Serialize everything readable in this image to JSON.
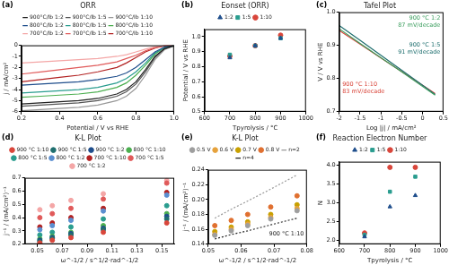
{
  "chart_data": [
    {
      "type": "line",
      "label": "(a)",
      "title": "ORR",
      "x_label": "Potential / V vs RHE",
      "y_label": "j / mA/cm²",
      "x": [
        0.2,
        0.3,
        0.4,
        0.5,
        0.6,
        0.7,
        0.75,
        0.8,
        0.85,
        0.9,
        0.95,
        1.0
      ],
      "xlim": [
        0.2,
        1.0
      ],
      "xticks": [
        0.2,
        0.4,
        0.6,
        0.8,
        {
          "value": 1,
          "label": "1.0"
        }
      ],
      "ylim": [
        -6,
        0
      ],
      "yticks": [
        -6,
        -5,
        -4,
        -3,
        -2,
        -1,
        0
      ],
      "grid": false,
      "legend": "top",
      "marker": "none",
      "line_style": "solid",
      "series": [
        {
          "name": "900°C/lb 1:2",
          "color": "#222222",
          "values": [
            -5.3,
            -5.2,
            -5.1,
            -5.0,
            -4.8,
            -4.4,
            -4.0,
            -3.3,
            -2.2,
            -1.0,
            -0.3,
            -0.05
          ]
        },
        {
          "name": "900°C/lb 1:5",
          "color": "#555555",
          "values": [
            -5.5,
            -5.4,
            -5.3,
            -5.2,
            -5.0,
            -4.6,
            -4.2,
            -3.5,
            -2.4,
            -1.1,
            -0.3,
            -0.05
          ]
        },
        {
          "name": "900°C/lb 1:10",
          "color": "#999999",
          "values": [
            -5.9,
            -5.8,
            -5.7,
            -5.6,
            -5.4,
            -5.0,
            -4.6,
            -3.9,
            -2.7,
            -1.3,
            -0.4,
            -0.05
          ]
        },
        {
          "name": "800°C/lb 1:2",
          "color": "#1f4e8c",
          "values": [
            -3.6,
            -3.5,
            -3.4,
            -3.3,
            -3.1,
            -2.8,
            -2.5,
            -2.0,
            -1.3,
            -0.6,
            -0.15,
            -0.02
          ]
        },
        {
          "name": "800°C/lb 1:5",
          "color": "#2a9d8f",
          "values": [
            -4.3,
            -4.2,
            -4.1,
            -4.0,
            -3.8,
            -3.4,
            -3.0,
            -2.4,
            -1.6,
            -0.7,
            -0.2,
            -0.02
          ]
        },
        {
          "name": "800°C/lb 1:10",
          "color": "#4caf50",
          "values": [
            -4.7,
            -4.6,
            -4.5,
            -4.4,
            -4.2,
            -3.8,
            -3.4,
            -2.7,
            -1.8,
            -0.8,
            -0.2,
            -0.02
          ]
        },
        {
          "name": "700°C/lb 1:2",
          "color": "#f4a6a6",
          "values": [
            -1.6,
            -1.5,
            -1.4,
            -1.3,
            -1.2,
            -1.0,
            -0.85,
            -0.6,
            -0.35,
            -0.12,
            -0.03,
            0
          ]
        },
        {
          "name": "700°C/lb 1:5",
          "color": "#e05a5a",
          "values": [
            -2.6,
            -2.4,
            -2.2,
            -2.0,
            -1.8,
            -1.5,
            -1.2,
            -0.9,
            -0.5,
            -0.2,
            -0.05,
            0
          ]
        },
        {
          "name": "700°C/lb 1:10",
          "color": "#b22222",
          "values": [
            -3.3,
            -3.1,
            -2.9,
            -2.7,
            -2.4,
            -2.0,
            -1.6,
            -1.1,
            -0.6,
            -0.25,
            -0.05,
            0
          ]
        }
      ]
    },
    {
      "type": "scatter",
      "label": "(b)",
      "title": "Eonset (ORR)",
      "x_label": "Tpyrolysis / °C",
      "y_label": "Potential / V vs RHE",
      "x": [
        700,
        800,
        900
      ],
      "xlim": [
        600,
        1000
      ],
      "xticks": [
        600,
        700,
        800,
        900,
        1000
      ],
      "ylim": [
        0.5,
        1.05
      ],
      "yticks": [
        0.5,
        0.6,
        0.7,
        0.8,
        0.9,
        {
          "value": 1,
          "label": "1.0"
        }
      ],
      "grid": false,
      "legend": "top",
      "series": [
        {
          "name": "1:2",
          "color": "#1f4e8c",
          "marker": "triangle",
          "values": [
            0.86,
            0.94,
            0.99
          ]
        },
        {
          "name": "1:5",
          "color": "#2a9d8f",
          "marker": "square",
          "values": [
            0.88,
            0.94,
            0.99
          ]
        },
        {
          "name": "1:10",
          "color": "#d9463b",
          "marker": "circle",
          "values": [
            0.87,
            0.94,
            1.01
          ]
        }
      ]
    },
    {
      "type": "line",
      "label": "(c)",
      "title": "Tafel Plot",
      "x_label": "Log |j| / mA/cm²",
      "y_label": "V / V vs RHE",
      "x": [
        -2,
        -1.5,
        -1,
        -0.5,
        0,
        0.3
      ],
      "xlim": [
        -2,
        0.5
      ],
      "xticks": [
        -2,
        -1.5,
        -1,
        -0.5,
        0,
        0.5
      ],
      "ylim": [
        0.7,
        1.0
      ],
      "yticks": [
        0.7,
        0.8,
        0.9,
        {
          "value": 1,
          "label": "1.0"
        }
      ],
      "grid": false,
      "marker": "none",
      "line_style": "solid",
      "series": [
        {
          "color": "#3a9d5d",
          "values": [
            0.95,
            0.906,
            0.863,
            0.82,
            0.776,
            0.75
          ]
        },
        {
          "color": "#1f6f6f",
          "values": [
            0.96,
            0.915,
            0.87,
            0.825,
            0.78,
            0.752
          ]
        },
        {
          "color": "#d9463b",
          "values": [
            0.945,
            0.904,
            0.862,
            0.821,
            0.78,
            0.755
          ]
        }
      ],
      "annotations": [
        {
          "lines": [
            "900 °C 1:2",
            "87 mV/decade"
          ],
          "color": "#3a9d5d"
        },
        {
          "lines": [
            "900 °C 1:5",
            "91 mV/decade"
          ],
          "color": "#1f6f6f"
        },
        {
          "lines": [
            "900 °C 1:10",
            "83 mV/decade"
          ],
          "color": "#d9463b"
        }
      ]
    },
    {
      "type": "scatter",
      "label": "(d)",
      "title": "K-L Plot",
      "x_label": "ω^-1/2 / s^1/2·rad^-1/2",
      "y_label": "j⁻¹ / (mA/cm²)⁻¹",
      "x": [
        0.052,
        0.062,
        0.077,
        0.103,
        0.154
      ],
      "xlim": [
        0.04,
        0.16
      ],
      "xticks": [
        0.05,
        0.07,
        0.09,
        0.11,
        0.13,
        0.15
      ],
      "ylim": [
        0.2,
        0.7
      ],
      "yticks": [
        0.2,
        0.3,
        0.4,
        0.5,
        0.6,
        0.7
      ],
      "grid": false,
      "legend": "top",
      "marker": "circle",
      "series": [
        {
          "name": "900 °C 1:10",
          "color": "#d9463b",
          "values": [
            0.21,
            0.23,
            0.25,
            0.29,
            0.36
          ]
        },
        {
          "name": "900 °C 1:5",
          "color": "#1f6f6f",
          "values": [
            0.22,
            0.24,
            0.27,
            0.31,
            0.39
          ]
        },
        {
          "name": "900 °C 1:2",
          "color": "#1f4e8c",
          "values": [
            0.23,
            0.25,
            0.28,
            0.32,
            0.41
          ]
        },
        {
          "name": "800 °C 1:10",
          "color": "#4caf50",
          "values": [
            0.24,
            0.26,
            0.29,
            0.34,
            0.43
          ]
        },
        {
          "name": "800 °C 1:5",
          "color": "#2a9d8f",
          "values": [
            0.27,
            0.29,
            0.33,
            0.39,
            0.49
          ]
        },
        {
          "name": "800 °C 1:2",
          "color": "#5b8fd0",
          "values": [
            0.31,
            0.34,
            0.38,
            0.45,
            0.57
          ]
        },
        {
          "name": "700 °C 1:10",
          "color": "#b22222",
          "values": [
            0.33,
            0.36,
            0.4,
            0.47,
            0.59
          ]
        },
        {
          "name": "700 °C 1:5",
          "color": "#e05a5a",
          "values": [
            0.4,
            0.43,
            0.47,
            0.54,
            0.66
          ]
        },
        {
          "name": "700 °C 1:2",
          "color": "#f4a6a6",
          "values": [
            0.46,
            0.49,
            0.53,
            0.58,
            0.68
          ]
        }
      ]
    },
    {
      "type": "scatter",
      "label": "(e)",
      "title": "K-L Plot",
      "x_label": "ω^-1/2 / s^1/2·rad^-1/2",
      "y_label": "j⁻¹ / (mA/cm²)⁻¹",
      "x": [
        0.052,
        0.057,
        0.062,
        0.069,
        0.077
      ],
      "xlim": [
        0.05,
        0.08
      ],
      "xticks": [
        0.05,
        0.06,
        0.07,
        0.08
      ],
      "ylim": [
        0.14,
        0.24
      ],
      "yticks": [
        0.14,
        0.16,
        0.18,
        {
          "value": 0.2,
          "label": "0.20"
        },
        0.22,
        0.24
      ],
      "grid": false,
      "legend": "top",
      "marker": "circle",
      "series": [
        {
          "name": "0.5 V",
          "color": "#9e9e9e",
          "values": [
            0.152,
            0.158,
            0.165,
            0.174,
            0.185
          ]
        },
        {
          "name": "0.6 V",
          "color": "#e6a23c",
          "values": [
            0.153,
            0.16,
            0.167,
            0.176,
            0.188
          ]
        },
        {
          "name": "0.7 V",
          "color": "#c8a000",
          "values": [
            0.157,
            0.163,
            0.17,
            0.18,
            0.193
          ]
        },
        {
          "name": "0.8 V",
          "color": "#e07030",
          "values": [
            0.165,
            0.172,
            0.18,
            0.19,
            0.205
          ]
        },
        {
          "name": "n=2",
          "color": "#999999",
          "type": "line",
          "marker": "none",
          "line_style": "dotted",
          "values": [
            0.175,
            0.187,
            0.198,
            0.214,
            0.233
          ]
        },
        {
          "name": "n=4",
          "color": "#222222",
          "type": "line",
          "marker": "none",
          "line_style": "dotted",
          "values": [
            0.147,
            0.153,
            0.158,
            0.166,
            0.175
          ]
        }
      ],
      "annotations": [
        {
          "lines": [
            "900 °C 1:10"
          ],
          "color": "#222222"
        }
      ]
    },
    {
      "type": "scatter",
      "label": "(f)",
      "title": "Reaction Electron Number",
      "x_label": "Tpyrolysis / °C",
      "y_label": "N",
      "x": [
        700,
        800,
        900
      ],
      "xlim": [
        600,
        1000
      ],
      "xticks": [
        600,
        700,
        800,
        900,
        1000
      ],
      "ylim": [
        1.9,
        4.1
      ],
      "yticks": [
        {
          "value": 2,
          "label": "2.0"
        },
        2.5,
        {
          "value": 3,
          "label": "3.0"
        },
        3.5,
        {
          "value": 4,
          "label": "4.0"
        }
      ],
      "grid": false,
      "legend": "top",
      "series": [
        {
          "name": "1:2",
          "color": "#1f4e8c",
          "marker": "triangle",
          "values": [
            2.1,
            2.9,
            3.2
          ]
        },
        {
          "name": "1:5",
          "color": "#2a9d8f",
          "marker": "square",
          "values": [
            2.15,
            3.3,
            3.7
          ]
        },
        {
          "name": "1:10",
          "color": "#d9463b",
          "marker": "circle",
          "values": [
            2.2,
            3.95,
            3.95
          ]
        }
      ]
    }
  ]
}
